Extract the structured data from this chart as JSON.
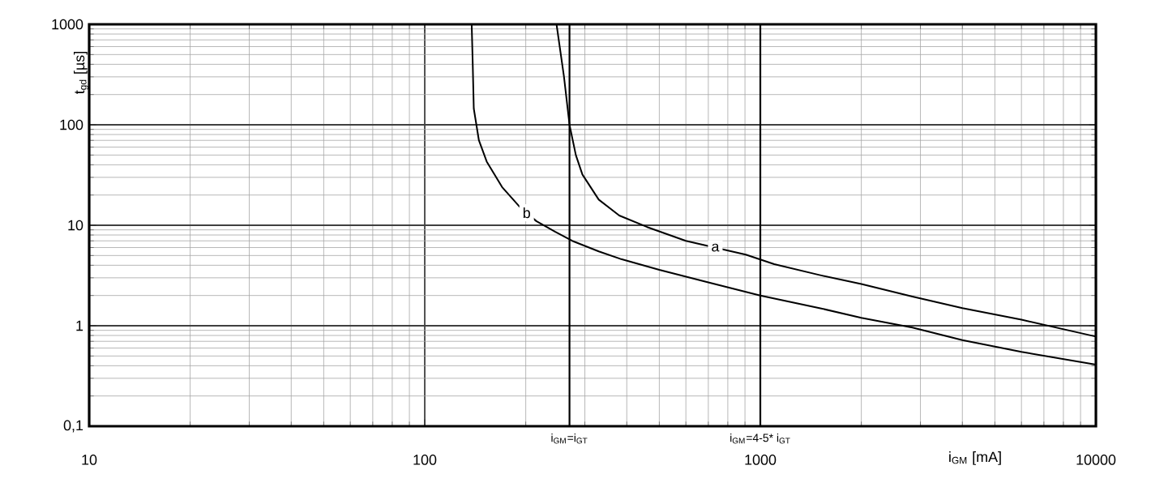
{
  "chart_data": {
    "type": "line",
    "xlabel": "i$_{GM}$ [mA]",
    "ylabel": "t$_{gd}$ [µs]",
    "log": "xy",
    "grid": true,
    "xlim": [
      10,
      10000
    ],
    "ylim": [
      0.1,
      1000
    ],
    "xticks": [
      10,
      100,
      1000,
      10000
    ],
    "yticks": [
      {
        "value": 0.1,
        "label": "0,1"
      },
      1,
      10,
      100,
      1000
    ],
    "series": [
      {
        "name": "a",
        "color": "#000000",
        "x": [
          247,
          260,
          270,
          282,
          295,
          330,
          380,
          460,
          600,
          750,
          905,
          1100,
          1500,
          2000,
          2840,
          4000,
          6000,
          10000
        ],
        "values": [
          1000,
          300,
          100,
          50,
          32,
          18,
          12.5,
          9.6,
          7,
          5.9,
          5.1,
          4.1,
          3.2,
          2.6,
          1.95,
          1.5,
          1.15,
          0.78
        ]
      },
      {
        "name": "b",
        "color": "#000000",
        "x": [
          138,
          139,
          140,
          145,
          153,
          170,
          191,
          215,
          245,
          275,
          330,
          385,
          500,
          700,
          1000,
          1500,
          2000,
          2840,
          4000,
          6000,
          10000
        ],
        "values": [
          1000,
          400,
          145,
          70,
          43,
          24,
          15.5,
          11,
          8.6,
          7,
          5.5,
          4.6,
          3.6,
          2.7,
          2.0,
          1.5,
          1.2,
          0.96,
          0.72,
          0.55,
          0.41
        ]
      }
    ],
    "ref_lines": [
      {
        "axis": "x",
        "value": 270
      },
      {
        "axis": "x",
        "value": 1000
      }
    ],
    "annotations": [
      "i$_{GM}$=i$_{GT}$",
      "i$_{GM}$=4-5* i$_{GT}$"
    ]
  }
}
